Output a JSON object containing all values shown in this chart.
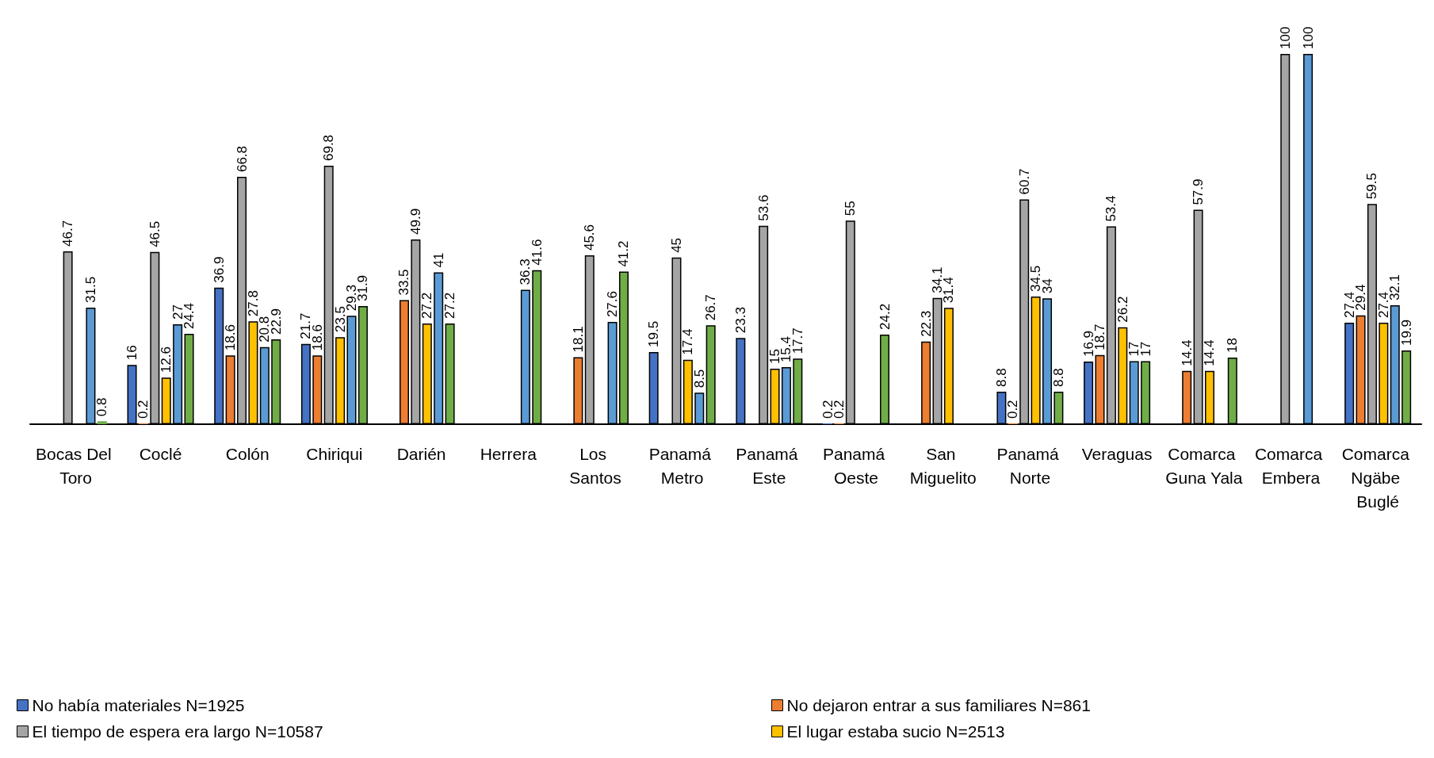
{
  "chart_data": {
    "type": "bar",
    "data_labels": true,
    "legend": "bottom",
    "categories": [
      "Bocas Del Toro",
      "Coclé",
      "Colón",
      "Chiriqui",
      "Darién",
      "Herrera",
      "Los Santos",
      "Panamá Metro",
      "Panamá Este",
      "Panamá Oeste",
      "San Miguelito",
      "Panamá Norte",
      "Veraguas",
      "Comarca Guna Yala",
      "Comarca Embera",
      "Comarca Ngäbe Buglé"
    ],
    "series": [
      {
        "name": "No había materiales N=1925",
        "color": "#4472c4",
        "values": [
          null,
          16,
          36.9,
          21.7,
          null,
          null,
          null,
          19.5,
          23.3,
          0.2,
          null,
          8.8,
          16.9,
          null,
          null,
          27.4
        ]
      },
      {
        "name": "No dejaron entrar a sus familiares N=861",
        "color": "#ed7d31",
        "values": [
          null,
          0.2,
          18.6,
          18.6,
          33.5,
          null,
          18.1,
          null,
          null,
          0.2,
          22.3,
          0.2,
          18.7,
          14.4,
          null,
          29.4
        ]
      },
      {
        "name": "El tiempo de espera era largo N=10587",
        "color": "#a5a5a5",
        "values": [
          46.7,
          46.5,
          66.8,
          69.8,
          49.9,
          null,
          45.6,
          45,
          53.6,
          55,
          34.1,
          60.7,
          53.4,
          57.9,
          100,
          59.5
        ]
      },
      {
        "name": "El lugar estaba sucio N=2513",
        "color": "#ffc000",
        "values": [
          null,
          12.6,
          27.8,
          23.5,
          27.2,
          null,
          null,
          17.4,
          15,
          null,
          31.4,
          34.5,
          26.2,
          14.4,
          null,
          27.4
        ]
      },
      {
        "color": "#5b9bd5",
        "values": [
          31.5,
          27,
          20.8,
          29.3,
          41,
          36.3,
          27.6,
          8.5,
          15.4,
          null,
          null,
          34,
          17,
          null,
          100,
          32.1
        ]
      },
      {
        "color": "#70ad47",
        "values": [
          0.8,
          24.4,
          22.9,
          31.9,
          27.2,
          41.6,
          41.2,
          26.7,
          17.7,
          24.2,
          null,
          8.8,
          17,
          18,
          null,
          19.9
        ]
      }
    ]
  }
}
